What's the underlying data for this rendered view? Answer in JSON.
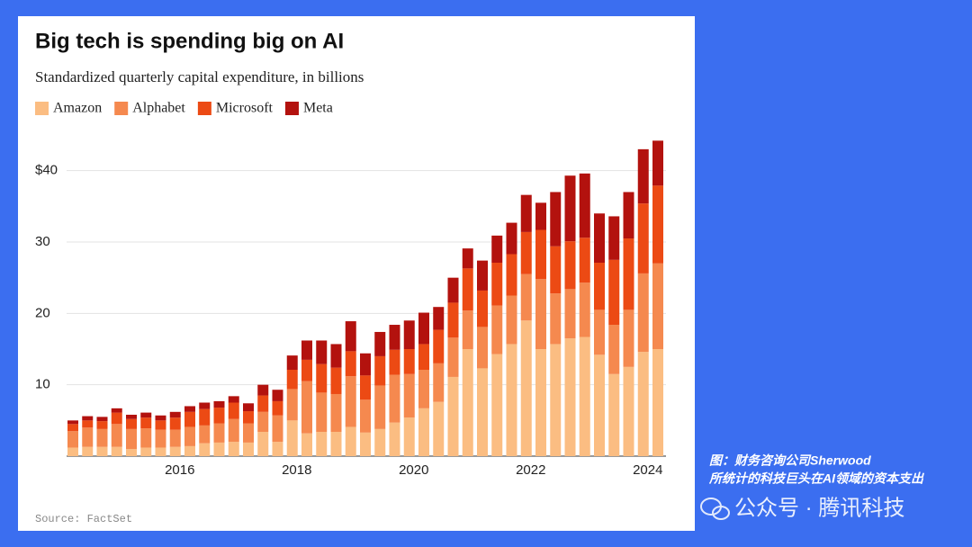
{
  "chart_data": {
    "type": "stacked_bar",
    "title": "Big tech is spending big on AI",
    "subtitle": "Standardized quarterly capital expenditure, in billions",
    "source": "Source: FactSet",
    "categories": [
      null,
      null,
      null,
      null,
      null,
      null,
      null,
      "2016",
      null,
      null,
      null,
      null,
      null,
      null,
      null,
      "2018",
      null,
      null,
      null,
      null,
      null,
      null,
      null,
      "2020",
      null,
      null,
      null,
      null,
      null,
      null,
      null,
      "2022",
      null,
      null,
      null,
      null,
      null,
      null,
      null,
      "2024",
      null
    ],
    "series": [
      {
        "name": "Amazon",
        "color": "#fbbd82",
        "values": [
          1.2,
          1.3,
          1.3,
          1.3,
          1.0,
          1.2,
          1.2,
          1.3,
          1.4,
          1.8,
          1.9,
          2.0,
          1.9,
          3.4,
          2.0,
          5.0,
          3.2,
          3.4,
          3.4,
          4.1,
          3.3,
          3.8,
          4.7,
          5.4,
          6.7,
          7.6,
          11.1,
          15.0,
          12.3,
          14.3,
          15.7,
          19.0,
          15.0,
          15.7,
          16.5,
          16.7,
          14.2,
          11.5,
          12.5,
          14.6,
          15.0
        ]
      },
      {
        "name": "Alphabet",
        "color": "#f5894f",
        "values": [
          2.3,
          2.7,
          2.5,
          3.2,
          2.8,
          2.7,
          2.5,
          2.4,
          2.7,
          2.5,
          2.7,
          3.2,
          2.7,
          2.8,
          3.7,
          4.4,
          7.3,
          5.5,
          5.3,
          7.1,
          4.6,
          6.1,
          6.7,
          6.1,
          5.4,
          5.4,
          5.5,
          5.4,
          5.8,
          6.8,
          6.8,
          6.5,
          9.8,
          7.1,
          6.9,
          7.6,
          6.3,
          6.9,
          8.0,
          11.0,
          12.0
        ]
      },
      {
        "name": "Microsoft",
        "color": "#ec4a14",
        "values": [
          1.0,
          1.0,
          1.1,
          1.6,
          1.4,
          1.5,
          1.3,
          1.7,
          2.1,
          2.3,
          2.2,
          2.3,
          1.7,
          2.3,
          2.0,
          2.7,
          3.0,
          4.0,
          3.7,
          3.5,
          3.4,
          4.1,
          3.5,
          3.5,
          3.6,
          4.7,
          4.9,
          5.9,
          5.1,
          6.0,
          5.8,
          5.9,
          6.9,
          6.6,
          6.7,
          6.3,
          6.6,
          9.1,
          10.0,
          9.8,
          10.9
        ]
      },
      {
        "name": "Meta",
        "color": "#b3120e",
        "values": [
          0.5,
          0.6,
          0.6,
          0.6,
          0.6,
          0.7,
          0.7,
          0.8,
          0.8,
          0.9,
          0.9,
          0.9,
          1.1,
          1.5,
          1.6,
          2.0,
          2.7,
          3.3,
          3.3,
          4.2,
          3.1,
          3.4,
          3.5,
          4.0,
          4.4,
          3.2,
          3.5,
          2.8,
          4.2,
          3.8,
          4.4,
          5.2,
          3.8,
          7.6,
          9.2,
          9.0,
          6.9,
          6.1,
          6.5,
          7.6,
          6.3
        ]
      }
    ],
    "ylim": [
      0,
      45
    ],
    "yticks": [
      10,
      20,
      30,
      {
        "value": 40,
        "label": "$40"
      }
    ],
    "grid": true
  },
  "caption": [
    "图：财务咨询公司Sherwood",
    "所统计的科技巨头在AI领域的资本支出"
  ],
  "watermark": "公众号 · 腾讯科技"
}
